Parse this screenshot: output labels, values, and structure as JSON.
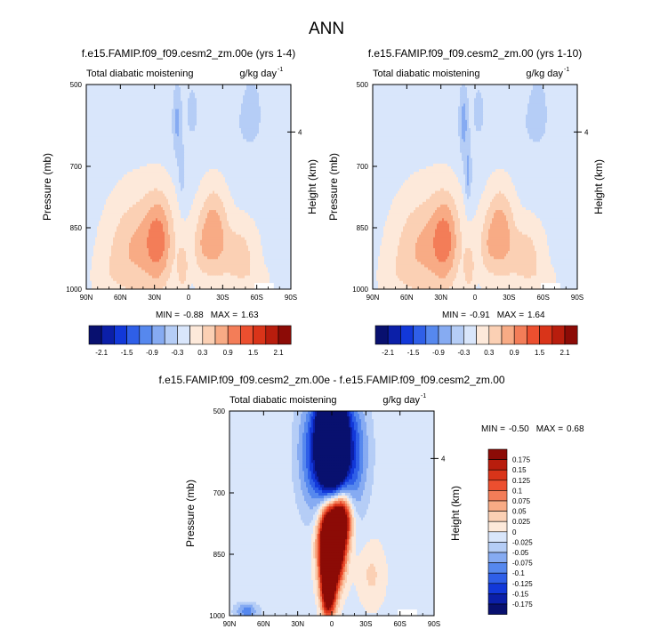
{
  "figure_title": "ANN",
  "colors": {
    "neg": [
      "#08106f",
      "#0b1fa8",
      "#1238d9",
      "#2f5fe8",
      "#5688ee",
      "#86abf2",
      "#b5cdf6",
      "#d9e6fb"
    ],
    "pos": [
      "#fde9da",
      "#fbd0b4",
      "#f8ab85",
      "#f37d58",
      "#ec4f2f",
      "#d93419",
      "#b81d0d",
      "#8c0b06"
    ],
    "background_panel": "#d6e5fb",
    "pale_warm": "#fde9da"
  },
  "chart_data": [
    {
      "type": "heatmap",
      "title": "f.e15.FAMIP.f09_f09.cesm2_zm.00e (yrs 1-4)",
      "left_label": "Total diabatic moistening",
      "units_base": "g/kg day",
      "units_exp": "-1",
      "ylabel": "Pressure (mb)",
      "ylabel_right": "Height (km)",
      "right_tick": "4",
      "right_tick_value_mb": 616,
      "xticks": [
        "90N",
        "60N",
        "30N",
        "0",
        "30S",
        "60S",
        "90S"
      ],
      "xtick_values": [
        90,
        60,
        30,
        0,
        -30,
        -60,
        -90
      ],
      "xlim": [
        90,
        -90
      ],
      "yticks": [
        "500",
        "700",
        "850",
        "1000"
      ],
      "ytick_values": [
        500,
        700,
        850,
        1000
      ],
      "ylim": [
        500,
        1000
      ],
      "min_label": "MIN =",
      "min": "-0.88",
      "max_label": "MAX =",
      "max": "1.63",
      "field": "A",
      "levels": [
        -2.1,
        -1.8,
        -1.5,
        -1.2,
        -0.9,
        -0.6,
        -0.3,
        0,
        0.3,
        0.6,
        0.9,
        1.2,
        1.5,
        1.8,
        2.1
      ]
    },
    {
      "type": "heatmap",
      "title": "f.e15.FAMIP.f09_f09.cesm2_zm.00 (yrs 1-10)",
      "left_label": "Total diabatic moistening",
      "units_base": "g/kg day",
      "units_exp": "-1",
      "ylabel": "Pressure (mb)",
      "ylabel_right": "Height (km)",
      "right_tick": "4",
      "right_tick_value_mb": 616,
      "xticks": [
        "90N",
        "60N",
        "30N",
        "0",
        "30S",
        "60S",
        "90S"
      ],
      "xtick_values": [
        90,
        60,
        30,
        0,
        -30,
        -60,
        -90
      ],
      "xlim": [
        90,
        -90
      ],
      "yticks": [
        "500",
        "700",
        "850",
        "1000"
      ],
      "ytick_values": [
        500,
        700,
        850,
        1000
      ],
      "ylim": [
        500,
        1000
      ],
      "min_label": "MIN =",
      "min": "-0.91",
      "max_label": "MAX =",
      "max": "1.64",
      "field": "B",
      "levels": [
        -2.1,
        -1.8,
        -1.5,
        -1.2,
        -0.9,
        -0.6,
        -0.3,
        0,
        0.3,
        0.6,
        0.9,
        1.2,
        1.5,
        1.8,
        2.1
      ]
    },
    {
      "type": "heatmap",
      "title": "f.e15.FAMIP.f09_f09.cesm2_zm.00e - f.e15.FAMIP.f09_f09.cesm2_zm.00",
      "left_label": "Total diabatic moistening",
      "units_base": "g/kg day",
      "units_exp": "-1",
      "ylabel": "Pressure (mb)",
      "ylabel_right": "Height (km)",
      "right_tick": "4",
      "right_tick_value_mb": 616,
      "xticks": [
        "90N",
        "60N",
        "30N",
        "0",
        "30S",
        "60S",
        "90S"
      ],
      "xtick_values": [
        90,
        60,
        30,
        0,
        -30,
        -60,
        -90
      ],
      "xlim": [
        90,
        -90
      ],
      "yticks": [
        "500",
        "700",
        "850",
        "1000"
      ],
      "ytick_values": [
        500,
        700,
        850,
        1000
      ],
      "ylim": [
        500,
        1000
      ],
      "min_label": "MIN =",
      "min": "-0.50",
      "max_label": "MAX =",
      "max": "0.68",
      "field": "D",
      "levels": [
        -0.175,
        -0.15,
        -0.125,
        -0.1,
        -0.075,
        -0.05,
        -0.025,
        0,
        0.025,
        0.05,
        0.075,
        0.1,
        0.125,
        0.15,
        0.175
      ]
    }
  ],
  "colorbar_main": {
    "labels": [
      "-2.1",
      "-1.5",
      "-0.9",
      "-0.3",
      "0.3",
      "0.9",
      "1.5",
      "2.1"
    ]
  },
  "colorbar_diff": {
    "labels": [
      "0.175",
      "0.15",
      "0.125",
      "0.1",
      "0.075",
      "0.05",
      "0.025",
      "0",
      "-0.025",
      "-0.05",
      "-0.075",
      "-0.1",
      "-0.125",
      "-0.15",
      "-0.175"
    ]
  }
}
